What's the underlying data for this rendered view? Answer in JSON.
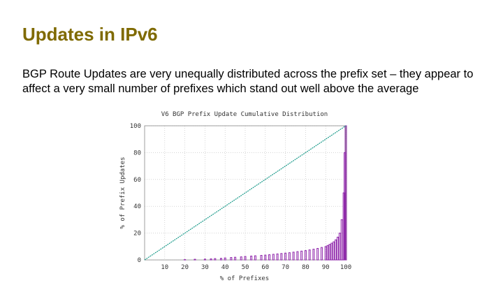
{
  "slide": {
    "title": "Updates in IPv6",
    "body": "BGP Route Updates are very unequally distributed across the prefix set – they appear to affect a very small number of prefixes which stand out well above the average"
  },
  "chart_data": {
    "type": "bar",
    "title": "V6 BGP Prefix Update Cumulative Distribution",
    "xlabel": "% of Prefixes",
    "ylabel": "% of Prefix Updates",
    "xlim": [
      0,
      100
    ],
    "ylim": [
      0,
      100
    ],
    "x_ticks": [
      "10",
      "20",
      "30",
      "40",
      "50",
      "60",
      "70",
      "80",
      "90",
      "100"
    ],
    "y_ticks": [
      "0",
      "20",
      "40",
      "60",
      "80",
      "100"
    ],
    "grid": true,
    "series": [
      {
        "type": "line",
        "color": "#1a9a8a",
        "x": [
          0,
          100
        ],
        "y": [
          0,
          100
        ]
      },
      {
        "type": "bar",
        "color": "#8e24aa",
        "bars": [
          [
            20,
            0.3
          ],
          [
            25,
            0.5
          ],
          [
            30,
            0.6
          ],
          [
            33,
            0.8
          ],
          [
            35,
            1.0
          ],
          [
            38,
            1.2
          ],
          [
            40,
            1.5
          ],
          [
            43,
            1.8
          ],
          [
            45,
            2.0
          ],
          [
            48,
            2.3
          ],
          [
            50,
            2.6
          ],
          [
            53,
            2.9
          ],
          [
            55,
            3.1
          ],
          [
            58,
            3.4
          ],
          [
            60,
            3.6
          ],
          [
            62,
            3.9
          ],
          [
            64,
            4.2
          ],
          [
            66,
            4.5
          ],
          [
            68,
            4.8
          ],
          [
            70,
            5.1
          ],
          [
            72,
            5.4
          ],
          [
            74,
            5.8
          ],
          [
            76,
            6.2
          ],
          [
            78,
            6.6
          ],
          [
            80,
            7.0
          ],
          [
            82,
            7.5
          ],
          [
            84,
            8.0
          ],
          [
            86,
            8.6
          ],
          [
            88,
            9.3
          ],
          [
            90,
            10.0
          ],
          [
            91,
            10.8
          ],
          [
            92,
            11.6
          ],
          [
            93,
            12.5
          ],
          [
            94,
            13.5
          ],
          [
            95,
            15.0
          ],
          [
            96,
            17.0
          ],
          [
            97,
            20.0
          ],
          [
            98,
            30.0
          ],
          [
            99,
            50.0
          ],
          [
            99.5,
            80.0
          ],
          [
            100,
            100.0
          ]
        ]
      }
    ]
  }
}
